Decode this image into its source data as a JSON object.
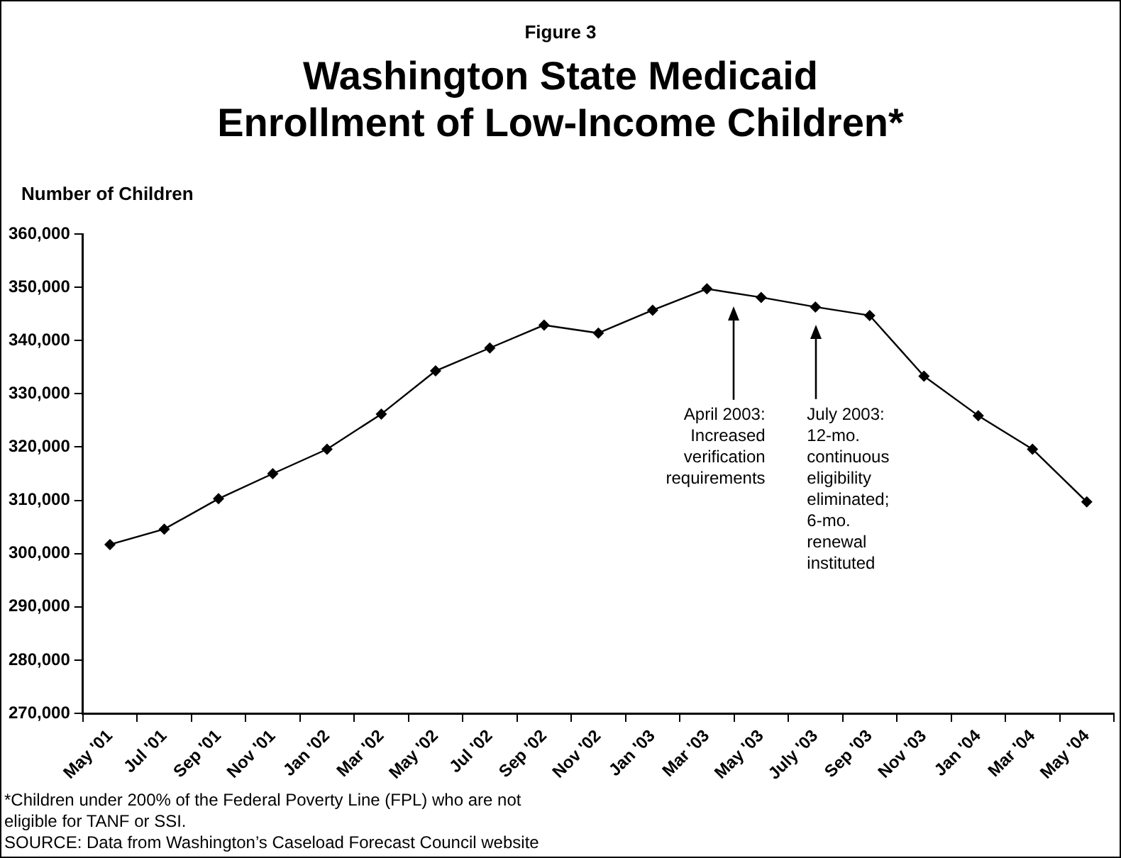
{
  "chart_data": {
    "type": "line",
    "subtitle": "Figure 3",
    "title": "Washington State Medicaid\nEnrollment of Low-Income Children*",
    "ylabel": "Number of Children",
    "categories": [
      "May '01",
      "Jul '01",
      "Sep '01",
      "Nov '01",
      "Jan '02",
      "Mar '02",
      "May '02",
      "Jul '02",
      "Sep '02",
      "Nov '02",
      "Jan '03",
      "Mar '03",
      "May '03",
      "July '03",
      "Sep '03",
      "Nov '03",
      "Jan '04",
      "Mar '04",
      "May '04"
    ],
    "series": [
      {
        "color": "#000000",
        "values": [
          301700,
          304600,
          310300,
          315000,
          319600,
          326200,
          334300,
          338600,
          342900,
          341400,
          345700,
          349700,
          348100,
          346300,
          344700,
          333300,
          325900,
          319600,
          309700
        ]
      }
    ],
    "ylim": [
      270000,
      360000
    ],
    "yticks": [
      {
        "value": 270000,
        "label": "270,000"
      },
      {
        "value": 280000,
        "label": "280,000"
      },
      {
        "value": 290000,
        "label": "290,000"
      },
      {
        "value": 300000,
        "label": "300,000"
      },
      {
        "value": 310000,
        "label": "310,000"
      },
      {
        "value": 320000,
        "label": "320,000"
      },
      {
        "value": 330000,
        "label": "330,000"
      },
      {
        "value": 340000,
        "label": "340,000"
      },
      {
        "value": 350000,
        "label": "350,000"
      },
      {
        "value": 360000,
        "label": "360,000"
      }
    ],
    "grid": false,
    "legend": false,
    "marker": "diamond",
    "line_style": "solid",
    "annotations": [
      "April 2003:\nIncreased\nverification\nrequirements",
      "July 2003:\n12-mo.\ncontinuous\neligibility\neliminated;\n6-mo.\nrenewal\ninstituted",
      "*Children under 200% of the Federal Poverty Line (FPL) who are not\neligible for TANF or SSI.",
      "SOURCE: Data from Washington’s Caseload Forecast Council website"
    ]
  }
}
